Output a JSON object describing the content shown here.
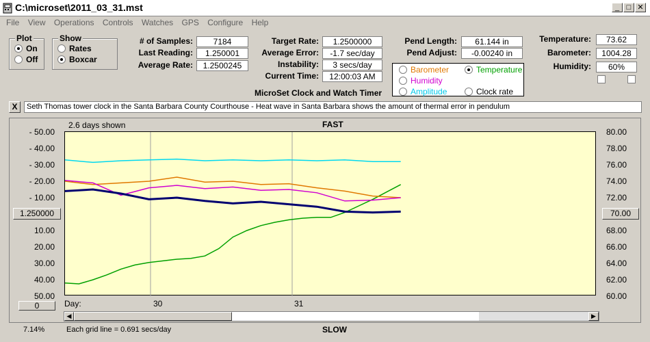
{
  "window": {
    "title": "C:\\microset\\2011_03_31.mst"
  },
  "menu": [
    "File",
    "View",
    "Operations",
    "Controls",
    "Watches",
    "GPS",
    "Configure",
    "Help"
  ],
  "plot_group": {
    "title": "Plot",
    "on_label": "On",
    "off_label": "Off",
    "selected": "On"
  },
  "show_group": {
    "title": "Show",
    "rates_label": "Rates",
    "boxcar_label": "Boxcar",
    "selected": "Boxcar"
  },
  "stats": {
    "samples_label": "# of Samples:",
    "samples": "7184",
    "last_reading_label": "Last Reading:",
    "last_reading": "1.250001",
    "average_rate_label": "Average Rate:",
    "average_rate": "1.2500245",
    "target_rate_label": "Target Rate:",
    "target_rate": "1.2500000",
    "average_error_label": "Average Error:",
    "average_error": "-1.7 sec/day",
    "instability_label": "Instability:",
    "instability": "3 secs/day",
    "current_time_label": "Current Time:",
    "current_time": "12:00:03 AM",
    "pend_length_label": "Pend Length:",
    "pend_length": "61.144 in",
    "pend_adjust_label": "Pend Adjust:",
    "pend_adjust": "-0.00240 in",
    "temperature_label": "Temperature:",
    "temperature": "73.62",
    "barometer_label": "Barometer:",
    "barometer": "1004.28",
    "humidity_label": "Humidity:",
    "humidity": "60%"
  },
  "app_caption": "MicroSet Clock and Watch Timer",
  "sensor_options": {
    "barometer": "Barometer",
    "temperature": "Temperature",
    "humidity": "Humidity",
    "amplitude": "Amplitude",
    "clock_rate": "Clock rate",
    "selected": "Temperature"
  },
  "note": {
    "close": "X",
    "text": "Seth Thomas tower clock in the Santa Barbara County Courthouse - Heat wave in Santa Barbara shows the amount of thermal error in pendulum"
  },
  "chart_header": {
    "days_shown": "2.6 days shown",
    "fast": "FAST",
    "slow": "SLOW",
    "day_label": "Day:",
    "grid_note": "Each grid line = 0.691 secs/day",
    "percent": "7.14%"
  },
  "left_buttons": {
    "center": "1.250000",
    "zero": "0"
  },
  "right_button": "70.00",
  "colors": {
    "plot_bg": "#ffffcc",
    "barometer": "#e07800",
    "temperature": "#00a000",
    "humidity": "#d000d0",
    "amplitude": "#00d8f0",
    "clock_rate": "#000070"
  },
  "chart_data": {
    "type": "line",
    "left_axis_ticks": [
      "-  50.00",
      "-  40.00",
      "-  30.00",
      "-  20.00",
      "-  10.00",
      "",
      "10.00",
      "20.00",
      "30.00",
      "40.00",
      "50.00"
    ],
    "right_axis_ticks": [
      "80.00",
      "78.00",
      "76.00",
      "74.00",
      "72.00",
      "",
      "68.00",
      "66.00",
      "64.00",
      "62.00",
      "60.00"
    ],
    "x_ticks": [
      "30",
      "31"
    ],
    "right_ylim": [
      60,
      80
    ],
    "series": [
      {
        "name": "Temperature",
        "color": "#00a000",
        "x": [
          0,
          0.1,
          0.2,
          0.3,
          0.4,
          0.5,
          0.6,
          0.7,
          0.8,
          0.9,
          1.0,
          1.1,
          1.2,
          1.3,
          1.4,
          1.5,
          1.6,
          1.7,
          1.8,
          1.9,
          2.0,
          2.1,
          2.2,
          2.3,
          2.4
        ],
        "values": [
          61.6,
          61.5,
          62.0,
          62.6,
          63.3,
          63.8,
          64.1,
          64.3,
          64.5,
          64.6,
          64.9,
          65.8,
          67.2,
          68.0,
          68.6,
          69.0,
          69.3,
          69.5,
          69.6,
          69.6,
          70.2,
          71.0,
          71.8,
          72.7,
          73.6
        ]
      },
      {
        "name": "Barometer",
        "color": "#e07800",
        "x": [
          0,
          0.2,
          0.4,
          0.6,
          0.8,
          1.0,
          1.2,
          1.4,
          1.6,
          1.8,
          2.0,
          2.2,
          2.4
        ],
        "values": [
          74.0,
          73.6,
          73.8,
          74.0,
          74.5,
          73.9,
          74.0,
          73.6,
          73.7,
          73.2,
          72.8,
          72.2,
          72.0
        ]
      },
      {
        "name": "Humidity",
        "color": "#d000d0",
        "x": [
          0,
          0.2,
          0.4,
          0.6,
          0.8,
          1.0,
          1.2,
          1.4,
          1.6,
          1.8,
          2.0,
          2.2,
          2.4
        ],
        "values": [
          74.1,
          73.8,
          72.3,
          73.2,
          73.5,
          73.1,
          73.3,
          72.9,
          73.0,
          72.6,
          71.6,
          71.7,
          72.0
        ]
      },
      {
        "name": "Amplitude",
        "color": "#00d8f0",
        "x": [
          0,
          0.2,
          0.4,
          0.6,
          0.8,
          1.0,
          1.2,
          1.4,
          1.6,
          1.8,
          2.0,
          2.2,
          2.4
        ],
        "values": [
          76.6,
          76.3,
          76.5,
          76.6,
          76.7,
          76.5,
          76.6,
          76.5,
          76.6,
          76.5,
          76.6,
          76.4,
          76.4
        ]
      },
      {
        "name": "Clock rate",
        "color": "#000070",
        "x": [
          0,
          0.2,
          0.4,
          0.6,
          0.8,
          1.0,
          1.2,
          1.4,
          1.6,
          1.8,
          2.0,
          2.2,
          2.4
        ],
        "values": [
          72.8,
          73.0,
          72.5,
          71.8,
          72.0,
          71.6,
          71.3,
          71.5,
          71.2,
          70.9,
          70.3,
          70.2,
          70.3
        ]
      }
    ]
  }
}
